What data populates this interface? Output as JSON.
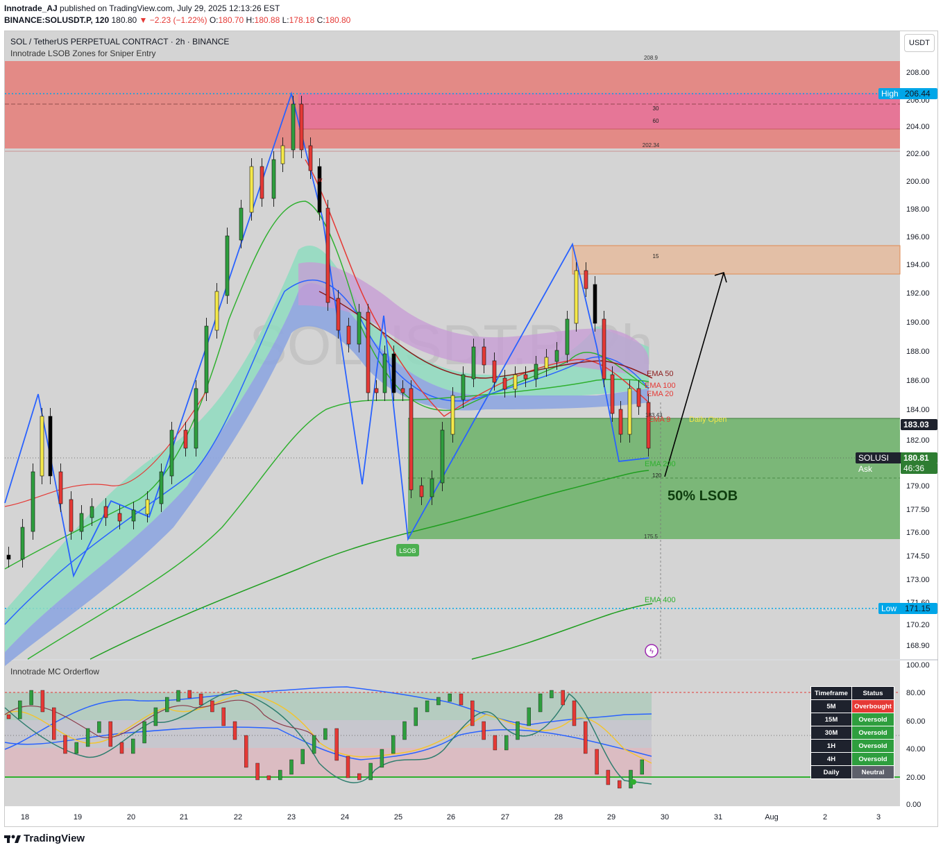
{
  "header": {
    "publisher": "Innotrade_AJ",
    "published_text": "published on TradingView.com, July 29, 2025 12:13:26 EST",
    "symbol": "BINANCE:SOLUSDT.P, 120",
    "last_price": "180.80",
    "change": "▼ −2.23 (−1.22%)",
    "o_label": "O:",
    "o_value": "180.70",
    "h_label": "H:",
    "h_value": "180.88",
    "l_label": "L:",
    "l_value": "178.18",
    "c_label": "C:",
    "c_value": "180.80"
  },
  "chart_header": {
    "title": "SOL / TetherUS PERPETUAL CONTRACT · 2h · BINANCE",
    "indicator": "Innotrade LSOB Zones for Sniper Entry",
    "currency_button": "USDT",
    "watermark": "SOLUSDT.P, 2h"
  },
  "price_axis": [
    "208.00",
    "206.00",
    "204.00",
    "202.00",
    "200.00",
    "198.00",
    "196.00",
    "194.00",
    "192.00",
    "190.00",
    "188.00",
    "186.00",
    "184.00",
    "182.00",
    "179.00",
    "177.50",
    "176.00",
    "174.50",
    "173.00",
    "171.60",
    "170.20",
    "168.90"
  ],
  "time_axis": [
    "18",
    "19",
    "20",
    "21",
    "22",
    "23",
    "24",
    "25",
    "26",
    "27",
    "28",
    "29",
    "30",
    "31",
    "Aug",
    "2",
    "3"
  ],
  "price_tags": {
    "high_label": "High",
    "high_value": "206.44",
    "daily_open_value": "183.03",
    "ask_label": "SOLUSI Ask",
    "ask_value": "180.81",
    "countdown": "46:36",
    "low_label": "Low",
    "low_value": "171.15"
  },
  "annotations": {
    "zone_top": "208.9",
    "zone_30": "30",
    "zone_60": "60",
    "zone_bottom": "202.34",
    "zone_15": "15",
    "ema50": "EMA 50",
    "ema100": "EMA 100",
    "ema20": "EMA 20",
    "ema9": "EMA 9",
    "ema200": "EMA 200",
    "ema400": "EMA 400",
    "daily_open": "Daily Open",
    "lsob_pct": "50% LSOB",
    "lsob_tag": "LSOB",
    "val_120": "120",
    "val_175_5": "175.5",
    "val_183_43": "183.43",
    "pin_marker": "w"
  },
  "oscillator": {
    "title": "Innotrade MC Orderflow",
    "axis": [
      "100.00",
      "80.00",
      "60.00",
      "40.00",
      "20.00",
      "0.00"
    ],
    "table_headers": [
      "Timeframe",
      "Status"
    ],
    "table_rows": [
      {
        "tf": "5M",
        "status": "Overbought",
        "color": "#e53935"
      },
      {
        "tf": "15M",
        "status": "Oversold",
        "color": "#2e9e3e"
      },
      {
        "tf": "30M",
        "status": "Oversold",
        "color": "#2e9e3e"
      },
      {
        "tf": "1H",
        "status": "Oversold",
        "color": "#2e9e3e"
      },
      {
        "tf": "4H",
        "status": "Oversold",
        "color": "#2e9e3e"
      },
      {
        "tf": "Daily",
        "status": "Neutral",
        "color": "#5d606b"
      }
    ]
  },
  "footer": {
    "brand": "TradingView"
  },
  "colors": {
    "up": "#2e9e3e",
    "down": "#e53935",
    "yellow_candle": "#f5e94a",
    "supply_zone": "#e57373",
    "demand_zone": "#66bb6a",
    "blue_line": "#2962ff"
  }
}
